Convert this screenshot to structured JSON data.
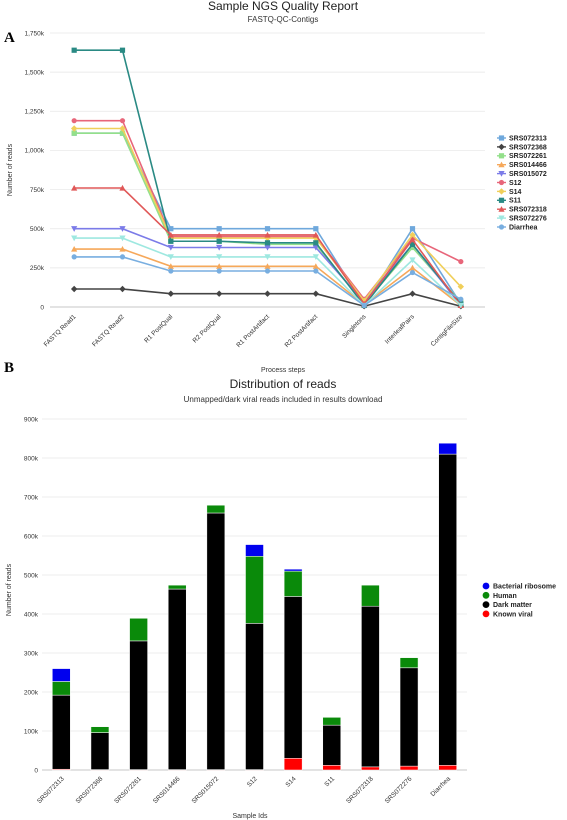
{
  "panels": [
    {
      "letter": "A"
    },
    {
      "letter": "B"
    }
  ],
  "chart_data": [
    {
      "type": "line",
      "title": "Sample NGS Quality Report",
      "subtitle": "FASTQ-QC-Contigs",
      "xlabel": "Process steps",
      "ylabel": "Number of reads",
      "ylim": [
        0,
        1750000
      ],
      "yticks": [
        {
          "v": 0,
          "label": "0"
        },
        {
          "v": 250000,
          "label": "250k"
        },
        {
          "v": 500000,
          "label": "500k"
        },
        {
          "v": 750000,
          "label": "750k"
        },
        {
          "v": 1000000,
          "label": "1,000k"
        },
        {
          "v": 1250000,
          "label": "1,250k"
        },
        {
          "v": 1500000,
          "label": "1,500k"
        },
        {
          "v": 1750000,
          "label": "1,750k"
        }
      ],
      "categories": [
        "FASTQ Read1",
        "FASTQ Read2",
        "R1 PostQual",
        "R2 PostQual",
        "R1 PostArtifact",
        "R2 PostArtifact",
        "Singletons",
        "InterleafPairs",
        "ContigFileSize"
      ],
      "legend_position": "right",
      "series": [
        {
          "name": "SRS072313",
          "color": "#6fa8dc",
          "marker": "square",
          "values": [
            1110000,
            1110000,
            500000,
            500000,
            500000,
            500000,
            10000,
            500000,
            20000
          ]
        },
        {
          "name": "SRS072368",
          "color": "#444444",
          "marker": "diamond",
          "values": [
            115000,
            115000,
            85000,
            85000,
            85000,
            85000,
            5000,
            85000,
            5000
          ]
        },
        {
          "name": "SRS072261",
          "color": "#93e08a",
          "marker": "square",
          "values": [
            1110000,
            1110000,
            420000,
            420000,
            400000,
            400000,
            20000,
            380000,
            30000
          ]
        },
        {
          "name": "SRS014466",
          "color": "#f6a85a",
          "marker": "triangle",
          "values": [
            370000,
            370000,
            260000,
            260000,
            260000,
            260000,
            15000,
            250000,
            10000
          ]
        },
        {
          "name": "SRS015072",
          "color": "#7b7be8",
          "marker": "triangle-down",
          "values": [
            500000,
            500000,
            380000,
            380000,
            380000,
            380000,
            30000,
            400000,
            10000
          ]
        },
        {
          "name": "S12",
          "color": "#e8667a",
          "marker": "circle",
          "values": [
            1190000,
            1190000,
            450000,
            450000,
            450000,
            450000,
            50000,
            440000,
            290000
          ]
        },
        {
          "name": "S14",
          "color": "#f0cf5a",
          "marker": "diamond",
          "values": [
            1140000,
            1140000,
            440000,
            440000,
            440000,
            440000,
            40000,
            460000,
            130000
          ]
        },
        {
          "name": "S11",
          "color": "#2a8a84",
          "marker": "square",
          "values": [
            1640000,
            1640000,
            420000,
            420000,
            410000,
            410000,
            10000,
            400000,
            20000
          ]
        },
        {
          "name": "SRS072318",
          "color": "#e05858",
          "marker": "triangle",
          "values": [
            760000,
            760000,
            460000,
            460000,
            460000,
            460000,
            20000,
            430000,
            10000
          ]
        },
        {
          "name": "SRS072276",
          "color": "#9ee8e0",
          "marker": "triangle-down",
          "values": [
            440000,
            440000,
            320000,
            320000,
            320000,
            320000,
            10000,
            300000,
            10000
          ]
        },
        {
          "name": "Diarrhea",
          "color": "#78aee0",
          "marker": "circle",
          "values": [
            320000,
            320000,
            230000,
            230000,
            230000,
            230000,
            10000,
            220000,
            50000
          ]
        }
      ]
    },
    {
      "type": "bar",
      "stacked": true,
      "title": "Distribution of reads",
      "subtitle": "Unmapped/dark viral reads included in results download",
      "xlabel": "Sample Ids",
      "ylabel": "Number of reads",
      "ylim": [
        0,
        900000
      ],
      "yticks": [
        {
          "v": 0,
          "label": "0"
        },
        {
          "v": 100000,
          "label": "100k"
        },
        {
          "v": 200000,
          "label": "200k"
        },
        {
          "v": 300000,
          "label": "300k"
        },
        {
          "v": 400000,
          "label": "400k"
        },
        {
          "v": 500000,
          "label": "500k"
        },
        {
          "v": 600000,
          "label": "600k"
        },
        {
          "v": 700000,
          "label": "700k"
        },
        {
          "v": 800000,
          "label": "800k"
        },
        {
          "v": 900000,
          "label": "900k"
        }
      ],
      "categories": [
        "SRS072313",
        "SRS072368",
        "SRS072261",
        "SRS014466",
        "SRS015072",
        "S12",
        "S14",
        "S11",
        "SRS072318",
        "SRS072276",
        "Diarrhea"
      ],
      "legend_position": "right",
      "legend_order": [
        "Bacterial ribosome",
        "Human",
        "Dark matter",
        "Known viral"
      ],
      "series": [
        {
          "name": "Known viral",
          "color": "#ff0000",
          "values": [
            2000,
            1000,
            1000,
            1000,
            1000,
            1000,
            30000,
            12000,
            8000,
            10000,
            12000
          ]
        },
        {
          "name": "Dark matter",
          "color": "#000000",
          "values": [
            190000,
            95000,
            330000,
            463000,
            658000,
            375000,
            415000,
            103000,
            412000,
            252000,
            798000
          ]
        },
        {
          "name": "Human",
          "color": "#0a8a0a",
          "values": [
            35000,
            15000,
            58000,
            10000,
            20000,
            172000,
            65000,
            20000,
            54000,
            26000,
            0
          ]
        },
        {
          "name": "Bacterial ribosome",
          "color": "#0000ee",
          "values": [
            33000,
            0,
            0,
            0,
            0,
            30000,
            5000,
            0,
            0,
            0,
            28000
          ]
        }
      ]
    }
  ]
}
